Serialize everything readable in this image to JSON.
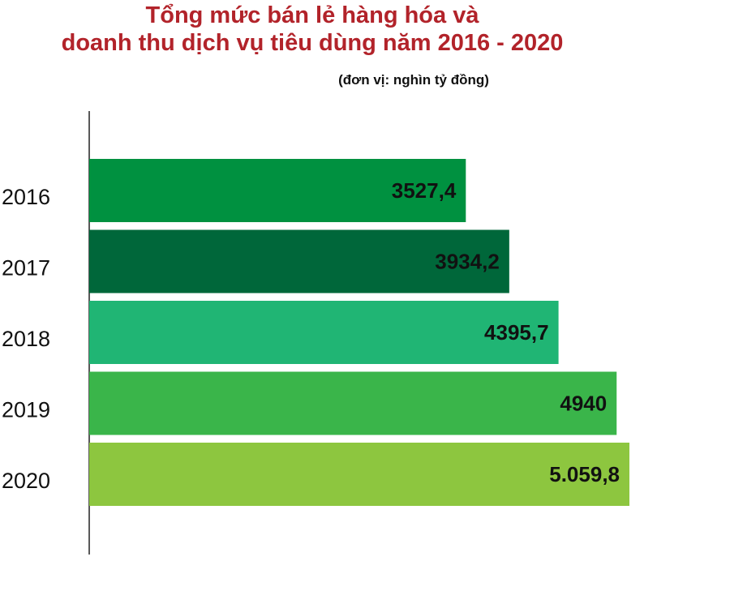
{
  "chart_data": {
    "type": "bar",
    "orientation": "horizontal",
    "title": [
      "Tổng mức bán lẻ hàng hóa và",
      "doanh thu dịch vụ tiêu dùng năm 2016 - 2020"
    ],
    "subtitle": "(đơn vị: nghìn tỷ đồng)",
    "categories": [
      "2016",
      "2017",
      "2018",
      "2019",
      "2020"
    ],
    "values": [
      3527.4,
      3934.2,
      4395.7,
      4940,
      5059.8
    ],
    "value_labels": [
      "3527,4",
      "3934,2",
      "4395,7",
      "4940",
      "5.059,8"
    ],
    "colors": [
      "#009140",
      "#00673a",
      "#20b574",
      "#3ab54a",
      "#8dc63f"
    ]
  }
}
